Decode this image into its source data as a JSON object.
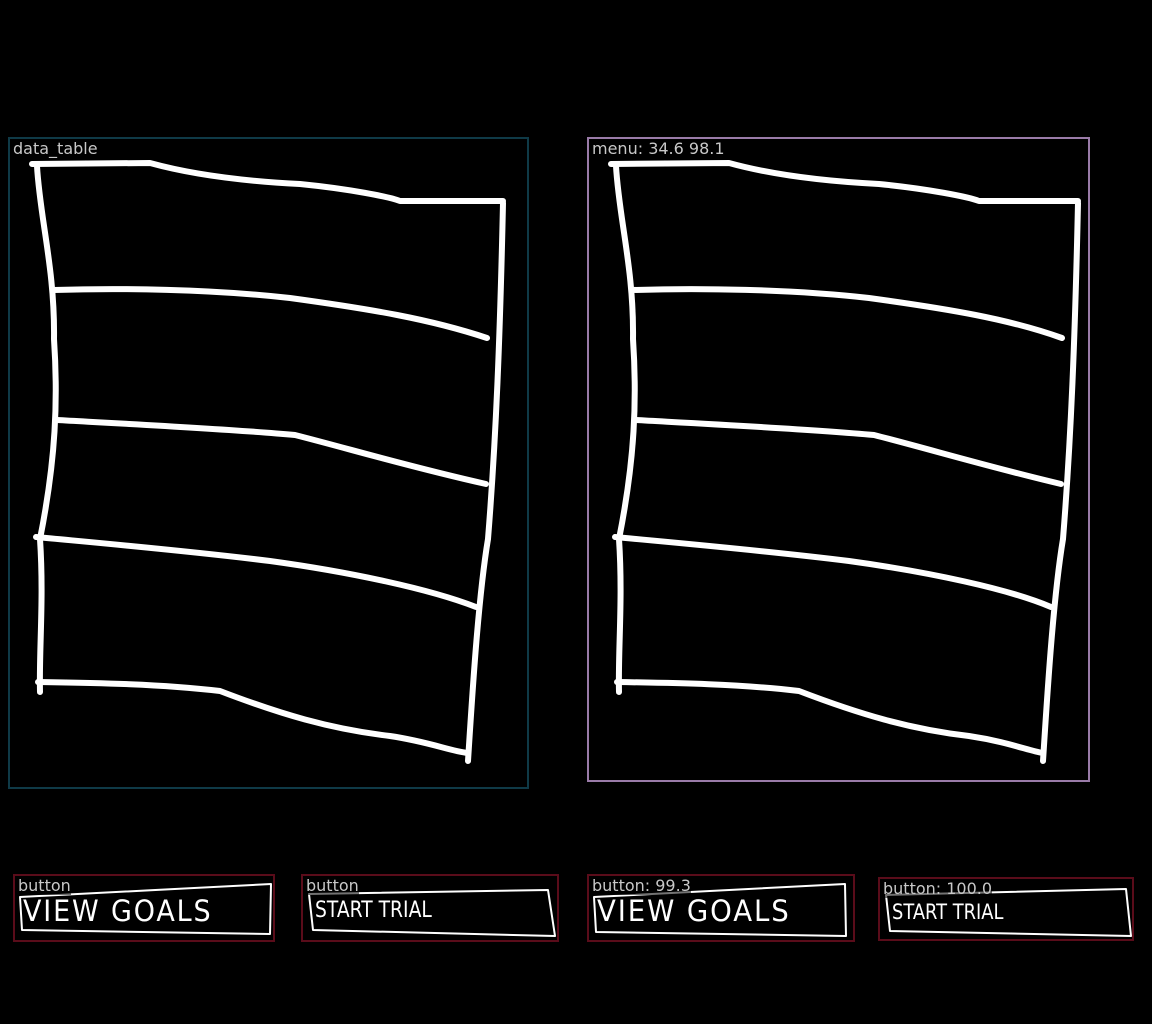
{
  "colors": {
    "background": "#000000",
    "sketch_stroke": "#ffffff",
    "table_border": "#0f3a47",
    "menu_border": "#9a7ba8",
    "button_border": "#5a0c1a",
    "label_text": "#c8c8c8"
  },
  "panels": [
    {
      "label": "data_table"
    },
    {
      "label": "menu: 34.6 98.1"
    }
  ],
  "buttons": [
    {
      "label": "button",
      "text": "VIEW GOALS"
    },
    {
      "label": "button",
      "text": "START TRIAL"
    },
    {
      "label": "button: 99.3",
      "text": "VIEW GOALS"
    },
    {
      "label": "button: 100.0",
      "text": "START TRIAL"
    }
  ]
}
